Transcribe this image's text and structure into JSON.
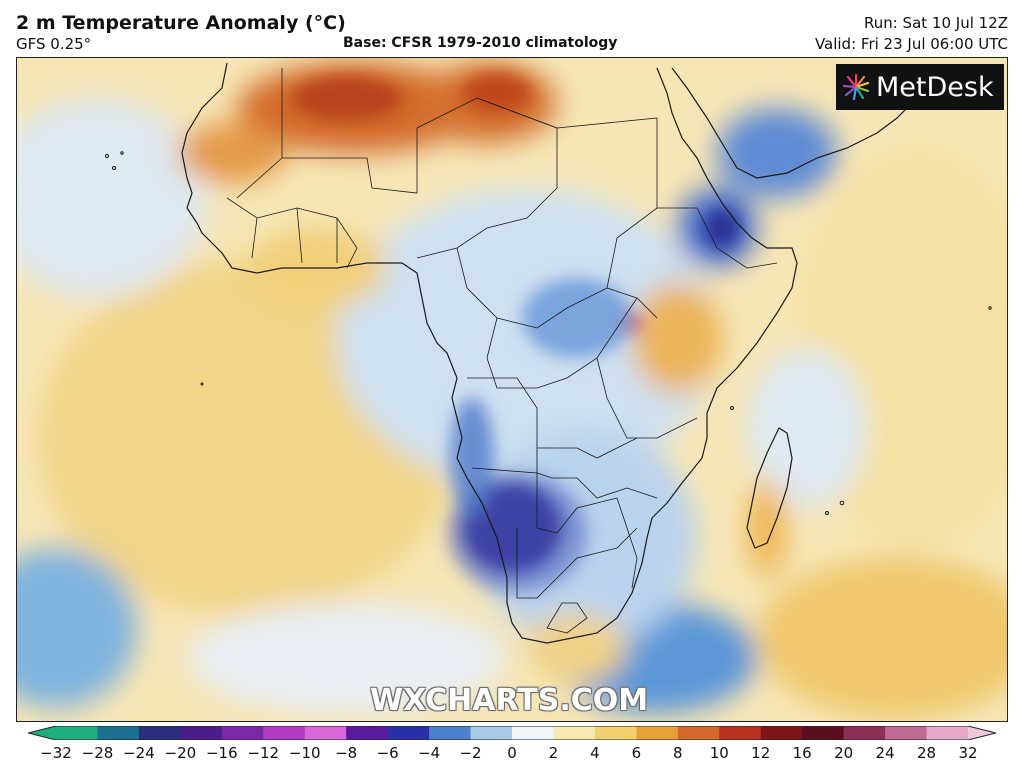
{
  "header": {
    "title": "2 m Temperature Anomaly (°C)",
    "model": "GFS 0.25°",
    "base": "Base: CFSR 1979-2010 climatology",
    "run": "Run: Sat 10 Jul 12Z",
    "valid": "Valid: Fri 23 Jul 06:00 UTC"
  },
  "logo": {
    "text": "MetDesk"
  },
  "watermark": {
    "text": "WXCHARTS.COM"
  },
  "colorbar": {
    "ticks": [
      "−32",
      "−28",
      "−24",
      "−20",
      "−16",
      "−12",
      "−10",
      "−8",
      "−6",
      "−4",
      "−2",
      "0",
      "2",
      "4",
      "6",
      "8",
      "10",
      "12",
      "16",
      "20",
      "24",
      "28",
      "32"
    ],
    "colors": [
      "#1fae7e",
      "#1b6f8f",
      "#2a2f7e",
      "#4b1c8c",
      "#7a2aa8",
      "#b23cc6",
      "#d868d8",
      "#5a1aa0",
      "#2a2fa8",
      "#4f7fcf",
      "#a6cbe8",
      "#eef4f8",
      "#f6e9b4",
      "#f1cf6e",
      "#e6a03a",
      "#d4682a",
      "#b5331f",
      "#7e1418",
      "#5a0f1e",
      "#8a2f55",
      "#c06a96",
      "#e6a8c8"
    ]
  },
  "map": {
    "region": "Africa",
    "palette": {
      "ocean_warm": "#f5e6b7",
      "neutral": "#eef3f6",
      "cool": "#9ec4e4",
      "cold": "#4c7fd0",
      "very_cold": "#2a2a8c",
      "warm": "#f0c868",
      "hot": "#d8762c",
      "very_hot": "#c04a24"
    }
  }
}
